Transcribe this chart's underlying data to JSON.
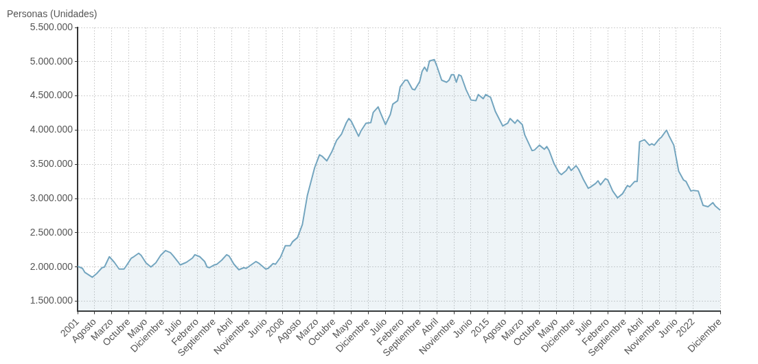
{
  "chart_data": {
    "type": "area",
    "ylabel": "Personas (Unidades)",
    "x": [
      "2001-01",
      "2001-03",
      "2001-04",
      "2001-07",
      "2001-09",
      "2001-11",
      "2001-12",
      "2002-02",
      "2002-04",
      "2002-06",
      "2002-08",
      "2002-09",
      "2002-11",
      "2002-12",
      "2003-02",
      "2003-03",
      "2003-05",
      "2003-07",
      "2003-09",
      "2003-11",
      "2004-01",
      "2004-03",
      "2004-04",
      "2004-06",
      "2004-07",
      "2004-09",
      "2004-10",
      "2004-12",
      "2005-01",
      "2005-03",
      "2005-05",
      "2005-06",
      "2005-07",
      "2005-09",
      "2005-10",
      "2005-12",
      "2006-02",
      "2006-03",
      "2006-05",
      "2006-07",
      "2006-09",
      "2006-10",
      "2006-12",
      "2007-02",
      "2007-03",
      "2007-06",
      "2007-07",
      "2007-09",
      "2007-10",
      "2007-12",
      "2008-02",
      "2008-04",
      "2008-05",
      "2008-07",
      "2008-09",
      "2008-11",
      "2009-02",
      "2009-04",
      "2009-05",
      "2009-07",
      "2009-09",
      "2009-11",
      "2010-01",
      "2010-03",
      "2010-04",
      "2010-05",
      "2010-08",
      "2010-09",
      "2010-11",
      "2011-01",
      "2011-02",
      "2011-04",
      "2011-05",
      "2011-07",
      "2011-09",
      "2011-10",
      "2011-12",
      "2012-01",
      "2012-03",
      "2012-04",
      "2012-06",
      "2012-07",
      "2012-09",
      "2012-10",
      "2012-11",
      "2012-12",
      "2013-01",
      "2013-03",
      "2013-04",
      "2013-06",
      "2013-08",
      "2013-09",
      "2013-10",
      "2013-11",
      "2013-12",
      "2014-01",
      "2014-02",
      "2014-04",
      "2014-06",
      "2014-08",
      "2014-09",
      "2014-11",
      "2014-12",
      "2015-02",
      "2015-04",
      "2015-07",
      "2015-09",
      "2015-10",
      "2015-12",
      "2016-01",
      "2016-03",
      "2016-04",
      "2016-07",
      "2016-08",
      "2016-10",
      "2016-12",
      "2017-01",
      "2017-02",
      "2017-04",
      "2017-06",
      "2017-07",
      "2017-09",
      "2017-10",
      "2017-11",
      "2018-01",
      "2018-02",
      "2018-04",
      "2018-06",
      "2018-07",
      "2018-09",
      "2018-10",
      "2018-11",
      "2019-01",
      "2019-02",
      "2019-04",
      "2019-06",
      "2019-08",
      "2019-10",
      "2019-11",
      "2020-01",
      "2020-02",
      "2020-03",
      "2020-05",
      "2020-07",
      "2020-08",
      "2020-09",
      "2020-11",
      "2020-12",
      "2021-02",
      "2021-03",
      "2021-05",
      "2021-07",
      "2021-09",
      "2021-10",
      "2021-12",
      "2022-01",
      "2022-03",
      "2022-05",
      "2022-07",
      "2022-09",
      "2022-10",
      "2022-12"
    ],
    "series": [
      {
        "color": "#73a5bf",
        "values": [
          2010000,
          1980000,
          1920000,
          1850000,
          1910000,
          1990000,
          2000000,
          2150000,
          2070000,
          1970000,
          1970000,
          2020000,
          2130000,
          2150000,
          2200000,
          2170000,
          2060000,
          2000000,
          2060000,
          2170000,
          2240000,
          2210000,
          2170000,
          2080000,
          2030000,
          2060000,
          2080000,
          2130000,
          2180000,
          2150000,
          2080000,
          2000000,
          1990000,
          2030000,
          2040000,
          2100000,
          2180000,
          2160000,
          2040000,
          1960000,
          1990000,
          1980000,
          2030000,
          2080000,
          2060000,
          1970000,
          1980000,
          2050000,
          2040000,
          2140000,
          2310000,
          2310000,
          2370000,
          2430000,
          2620000,
          3040000,
          3450000,
          3640000,
          3620000,
          3550000,
          3680000,
          3850000,
          3940000,
          4110000,
          4170000,
          4130000,
          3910000,
          3990000,
          4100000,
          4110000,
          4260000,
          4340000,
          4250000,
          4080000,
          4230000,
          4380000,
          4430000,
          4630000,
          4730000,
          4730000,
          4600000,
          4590000,
          4710000,
          4860000,
          4920000,
          4860000,
          5010000,
          5030000,
          4940000,
          4730000,
          4700000,
          4730000,
          4810000,
          4810000,
          4700000,
          4810000,
          4790000,
          4590000,
          4440000,
          4430000,
          4520000,
          4460000,
          4520000,
          4480000,
          4270000,
          4060000,
          4100000,
          4170000,
          4100000,
          4150000,
          4080000,
          3930000,
          3700000,
          3710000,
          3780000,
          3720000,
          3760000,
          3700000,
          3510000,
          3380000,
          3350000,
          3410000,
          3470000,
          3410000,
          3480000,
          3430000,
          3280000,
          3150000,
          3170000,
          3220000,
          3260000,
          3200000,
          3290000,
          3270000,
          3110000,
          3010000,
          3070000,
          3190000,
          3170000,
          3250000,
          3250000,
          3830000,
          3860000,
          3780000,
          3800000,
          3780000,
          3870000,
          3900000,
          4000000,
          3920000,
          3780000,
          3400000,
          3270000,
          3250000,
          3110000,
          3120000,
          3110000,
          2900000,
          2880000,
          2940000,
          2890000,
          2830000
        ]
      }
    ],
    "xlim": [
      "2001-01",
      "2022-12"
    ],
    "xticks": [
      {
        "value": "2001-01",
        "label": "2001"
      },
      {
        "value": "2001-08",
        "label": "Agosto"
      },
      {
        "value": "2002-03",
        "label": "Marzo"
      },
      {
        "value": "2002-10",
        "label": "Octubre"
      },
      {
        "value": "2003-05",
        "label": "Mayo"
      },
      {
        "value": "2003-12",
        "label": "Diciembre"
      },
      {
        "value": "2004-07",
        "label": "Julio"
      },
      {
        "value": "2005-02",
        "label": "Febrero"
      },
      {
        "value": "2005-09",
        "label": "Septiembre"
      },
      {
        "value": "2006-04",
        "label": "Abril"
      },
      {
        "value": "2006-11",
        "label": "Noviembre"
      },
      {
        "value": "2007-06",
        "label": "Junio"
      },
      {
        "value": "2008-01",
        "label": "2008"
      },
      {
        "value": "2008-08",
        "label": "Agosto"
      },
      {
        "value": "2009-03",
        "label": "Marzo"
      },
      {
        "value": "2009-10",
        "label": "Octubre"
      },
      {
        "value": "2010-05",
        "label": "Mayo"
      },
      {
        "value": "2010-12",
        "label": "Diciembre"
      },
      {
        "value": "2011-07",
        "label": "Julio"
      },
      {
        "value": "2012-02",
        "label": "Febrero"
      },
      {
        "value": "2012-09",
        "label": "Septiembre"
      },
      {
        "value": "2013-04",
        "label": "Abril"
      },
      {
        "value": "2013-11",
        "label": "Noviembre"
      },
      {
        "value": "2014-06",
        "label": "Junio"
      },
      {
        "value": "2015-01",
        "label": "2015"
      },
      {
        "value": "2015-08",
        "label": "Agosto"
      },
      {
        "value": "2016-03",
        "label": "Marzo"
      },
      {
        "value": "2016-10",
        "label": "Octubre"
      },
      {
        "value": "2017-05",
        "label": "Mayo"
      },
      {
        "value": "2017-12",
        "label": "Diciembre"
      },
      {
        "value": "2018-07",
        "label": "Julio"
      },
      {
        "value": "2019-02",
        "label": "Febrero"
      },
      {
        "value": "2019-09",
        "label": "Septiembre"
      },
      {
        "value": "2020-04",
        "label": "Abril"
      },
      {
        "value": "2020-11",
        "label": "Noviembre"
      },
      {
        "value": "2021-06",
        "label": "Junio"
      },
      {
        "value": "2022-01",
        "label": "2022"
      },
      {
        "value": "2022-12",
        "label": "Diciembre"
      }
    ],
    "ylim": [
      1350000,
      5500000
    ],
    "yticks": [
      {
        "value": 1500000,
        "label": "1.500.000"
      },
      {
        "value": 2000000,
        "label": "2.000.000"
      },
      {
        "value": 2500000,
        "label": "2.500.000"
      },
      {
        "value": 3000000,
        "label": "3.000.000"
      },
      {
        "value": 3500000,
        "label": "3.500.000"
      },
      {
        "value": 4000000,
        "label": "4.000.000"
      },
      {
        "value": 4500000,
        "label": "4.500.000"
      },
      {
        "value": 5000000,
        "label": "5.000.000"
      },
      {
        "value": 5500000,
        "label": "5.500.000"
      }
    ],
    "grid": true
  }
}
